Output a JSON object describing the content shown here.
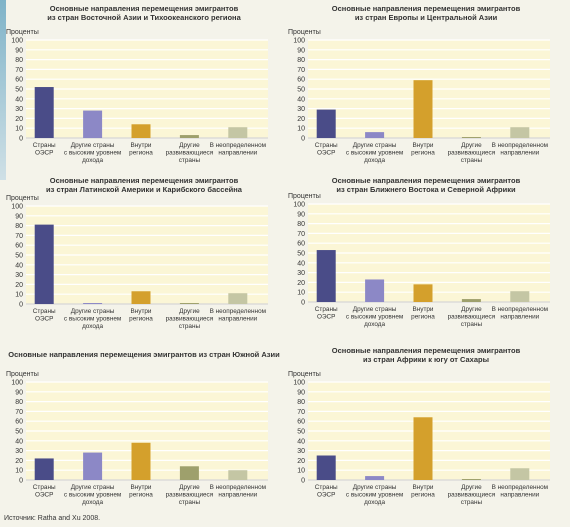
{
  "source": "Источник: Ratha and Xu 2008.",
  "colors": {
    "oecd": "#4a4c88",
    "high_income": "#8c88c6",
    "intra_region": "#d4a02c",
    "developing": "#9ea06c",
    "unspecified": "#c4c6a4",
    "plot_bg": "#fbf6d6"
  },
  "chart_data": [
    {
      "type": "bar",
      "title": "Основные направления перемещения эмигрантов\nиз стран Восточной Азии и Тихоокеанского региона",
      "ylabel": "Проценты",
      "ylim": [
        0,
        100
      ],
      "yticks": [
        0,
        10,
        20,
        30,
        40,
        50,
        60,
        70,
        80,
        90,
        100
      ],
      "categories": [
        "Страны\nОЭСР",
        "Другие страны\nс высоким уровнем\nдохода",
        "Внутри\nрегиона",
        "Другие\nразвивающиеся\nстраны",
        "В неопределенном\nнаправлении"
      ],
      "values": [
        52,
        28,
        14,
        3,
        11
      ]
    },
    {
      "type": "bar",
      "title": "Основные направления перемещения эмигрантов\nиз стран Европы и Центральной Азии",
      "ylabel": "Проценты",
      "ylim": [
        0,
        100
      ],
      "yticks": [
        0,
        10,
        20,
        30,
        40,
        50,
        60,
        70,
        80,
        90,
        100
      ],
      "categories": [
        "Страны\nОЭСР",
        "Другие страны\nс высоким уровнем\nдохода",
        "Внутри\nрегиона",
        "Другие\nразвивающиеся\nстраны",
        "В неопределенном\nнаправлении"
      ],
      "values": [
        29,
        6,
        59,
        1,
        11
      ]
    },
    {
      "type": "bar",
      "title": "Основные направления перемещения эмигрантов\nиз стран Латинской Америки и Карибского бассейна",
      "ylabel": "Проценты",
      "ylim": [
        0,
        100
      ],
      "yticks": [
        0,
        10,
        20,
        30,
        40,
        50,
        60,
        70,
        80,
        90,
        100
      ],
      "categories": [
        "Страны\nОЭСР",
        "Другие страны\nс высоким уровнем\nдохода",
        "Внутри\nрегиона",
        "Другие\nразвивающиеся\nстраны",
        "В неопределенном\nнаправлении"
      ],
      "values": [
        81,
        1,
        13,
        1,
        11
      ]
    },
    {
      "type": "bar",
      "title": "Основные направления перемещения эмигрантов\nиз стран Ближнего Востока и Северной Африки",
      "ylabel": "Проценты",
      "ylim": [
        0,
        100
      ],
      "yticks": [
        0,
        10,
        20,
        30,
        40,
        50,
        60,
        70,
        80,
        90,
        100
      ],
      "categories": [
        "Страны\nОЭСР",
        "Другие страны\nс высоким уровнем\nдохода",
        "Внутри\nрегиона",
        "Другие\nразвивающиеся\nстраны",
        "В неопределенном\nнаправлении"
      ],
      "values": [
        53,
        23,
        18,
        3,
        11
      ]
    },
    {
      "type": "bar",
      "title": "Основные направления перемещения эмигрантов из стран Южной Азии",
      "ylabel": "Проценты",
      "ylim": [
        0,
        100
      ],
      "yticks": [
        0,
        10,
        20,
        30,
        40,
        50,
        60,
        70,
        80,
        90,
        100
      ],
      "categories": [
        "Страны\nОЭСР",
        "Другие страны\nс высоким уровнем\nдохода",
        "Внутри\nрегиона",
        "Другие\nразвивающиеся\nстраны",
        "В неопределенном\nнаправлении"
      ],
      "values": [
        22,
        28,
        38,
        14,
        10
      ]
    },
    {
      "type": "bar",
      "title": "Основные направления перемещения эмигрантов\nиз стран Африки к югу от Сахары",
      "ylabel": "Проценты",
      "ylim": [
        0,
        100
      ],
      "yticks": [
        0,
        10,
        20,
        30,
        40,
        50,
        60,
        70,
        80,
        90,
        100
      ],
      "categories": [
        "Страны\nОЭСР",
        "Другие страны\nс высоким уровнем\nдохода",
        "Внутри\nрегиона",
        "Другие\nразвивающиеся\nстраны",
        "В неопределенном\nнаправлении"
      ],
      "values": [
        25,
        4,
        64,
        1,
        12
      ]
    }
  ]
}
